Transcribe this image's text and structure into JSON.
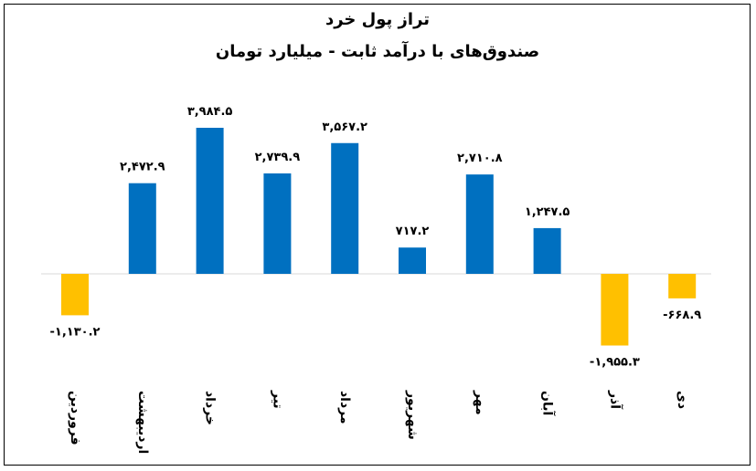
{
  "chart_data": {
    "type": "bar",
    "title": "تراز پول خرد",
    "subtitle": "صندوق‌های با درآمد ثابت - میلیارد تومان",
    "categories": [
      "فروردین",
      "اردیبهشت",
      "خرداد",
      "تیر",
      "مرداد",
      "شهریور",
      "مهر",
      "آبان",
      "آذر",
      "دی"
    ],
    "values": [
      -1130.2,
      2472.9,
      3984.5,
      2739.9,
      3567.2,
      717.2,
      2710.8,
      1247.5,
      -1955.3,
      -668.9
    ],
    "data_labels": [
      "-۱,۱۳۰.۲",
      "۲,۴۷۲.۹",
      "۳,۹۸۴.۵",
      "۲,۷۳۹.۹",
      "۳,۵۶۷.۲",
      "۷۱۷.۲",
      "۲,۷۱۰.۸",
      "۱,۲۴۷.۵",
      "-۱,۹۵۵.۳",
      "-۶۶۸.۹"
    ],
    "colors": {
      "positive": "#0070C0",
      "negative": "#FFC000",
      "baseline": "#D9D9D9"
    },
    "grid": false,
    "legend": "none"
  }
}
